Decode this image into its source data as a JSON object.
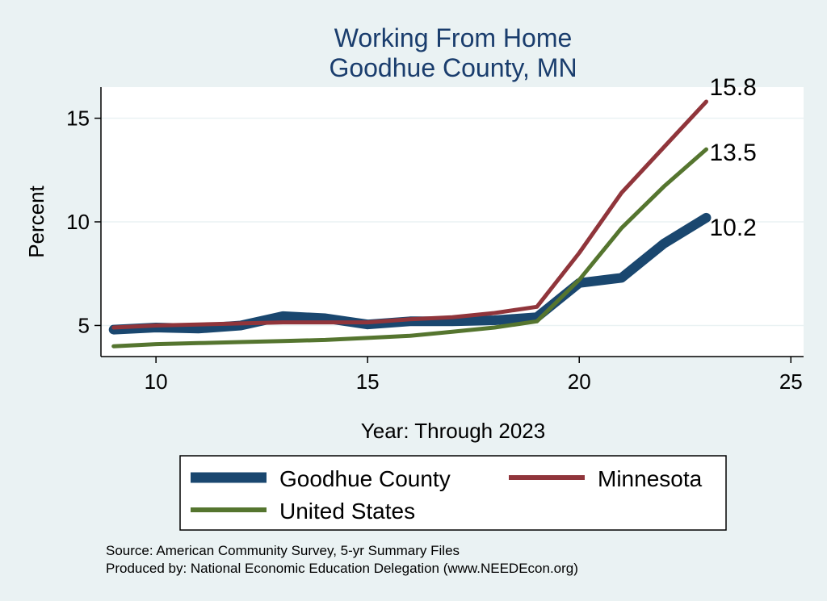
{
  "chart_data": {
    "type": "line",
    "title": [
      "Working From Home",
      "Goodhue County, MN"
    ],
    "xlabel": "Year: Through 2023",
    "ylabel": "Percent",
    "xlim": [
      8.7,
      25.3
    ],
    "ylim": [
      3.5,
      16.5
    ],
    "xticks": [
      10,
      15,
      20,
      25
    ],
    "yticks": [
      5,
      10,
      15
    ],
    "grid": true,
    "legend_position": "bottom",
    "x": [
      9,
      10,
      11,
      12,
      13,
      14,
      15,
      16,
      17,
      18,
      19,
      20,
      21,
      22,
      23
    ],
    "series": [
      {
        "name": "Goodhue County",
        "color": "#1a476f",
        "values": [
          4.8,
          4.9,
          4.85,
          5.0,
          5.45,
          5.35,
          5.05,
          5.2,
          5.2,
          5.25,
          5.4,
          7.05,
          7.3,
          8.95,
          10.2
        ],
        "end_label": "10.2"
      },
      {
        "name": "Minnesota",
        "color": "#90353b",
        "values": [
          4.9,
          5.0,
          5.05,
          5.1,
          5.15,
          5.15,
          5.15,
          5.3,
          5.4,
          5.6,
          5.9,
          8.5,
          11.4,
          13.6,
          15.8
        ],
        "end_label": "15.8"
      },
      {
        "name": "United States",
        "color": "#55752f",
        "values": [
          4.0,
          4.1,
          4.15,
          4.2,
          4.25,
          4.3,
          4.4,
          4.5,
          4.7,
          4.9,
          5.2,
          7.2,
          9.7,
          11.7,
          13.5
        ],
        "end_label": "13.5"
      }
    ],
    "notes": [
      "Source: American Community Survey, 5-yr Summary Files",
      "Produced by: National Economic Education Delegation (www.NEEDEcon.org)"
    ]
  }
}
